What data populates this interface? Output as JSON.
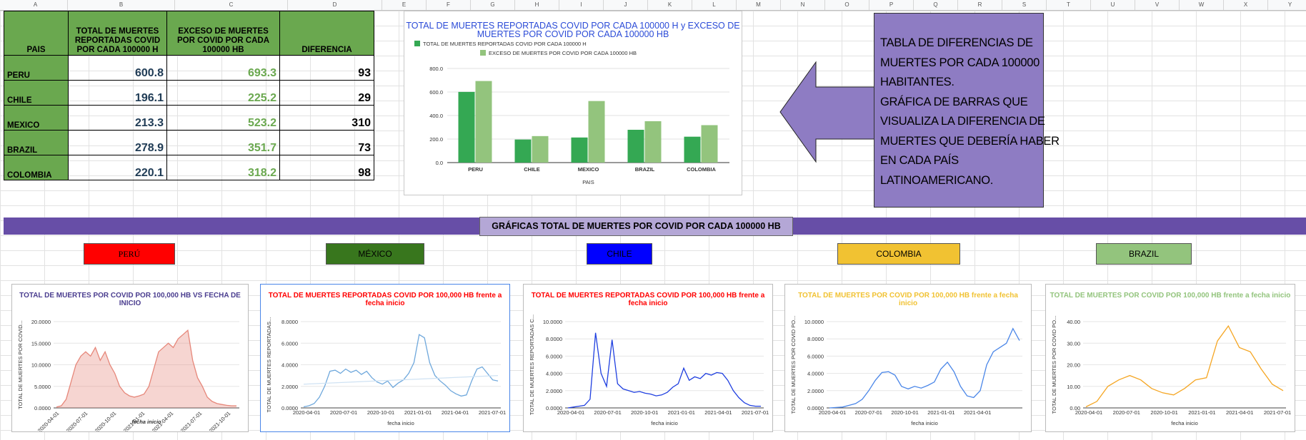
{
  "spreadsheet": {
    "columns": [
      "A",
      "B",
      "C",
      "D",
      "E",
      "F",
      "G",
      "H",
      "I",
      "J",
      "K",
      "L",
      "M",
      "N",
      "O",
      "P",
      "Q",
      "R",
      "S",
      "T",
      "U",
      "V",
      "W",
      "X",
      "Y"
    ]
  },
  "table": {
    "headers": {
      "pais": "PAIS",
      "total": "TOTAL DE MUERTES REPORTADAS COVID POR CADA 100000 H",
      "exceso": "EXCESO DE MUERTES POR COVID POR CADA 100000 HB",
      "diferencia": "DIFERENCIA"
    },
    "rows": [
      {
        "pais": "PERU",
        "total": "600.8",
        "exceso": "693.3",
        "diferencia": "93"
      },
      {
        "pais": "CHILE",
        "total": "196.1",
        "exceso": "225.2",
        "diferencia": "29"
      },
      {
        "pais": "MEXICO",
        "total": "213.3",
        "exceso": "523.2",
        "diferencia": "310"
      },
      {
        "pais": "BRAZIL",
        "total": "278.9",
        "exceso": "351.7",
        "diferencia": "73"
      },
      {
        "pais": "COLOMBIA",
        "total": "220.1",
        "exceso": "318.2",
        "diferencia": "98"
      }
    ]
  },
  "note": {
    "lines": [
      "TABLA DE DIFERENCIAS DE",
      "MUERTES POR CADA 100000",
      "HABITANTES.",
      "GRÁFICA DE BARRAS QUE",
      "VISUALIZA LA DIFERENCIA DE",
      "MUERTES QUE DEBERÍA HABER",
      "EN CADA PAÍS",
      "LATINOAMERICANO."
    ]
  },
  "band": {
    "title": "GRÁFICAS  TOTAL DE MUERTES POR COVID POR CADA 100000 HB"
  },
  "country_buttons": [
    {
      "label": "PERÚ",
      "bg": "#ff0000",
      "fg": "#000000"
    },
    {
      "label": "MÉXICO",
      "bg": "#38761d",
      "fg": "#000000"
    },
    {
      "label": "CHILE",
      "bg": "#0000ff",
      "fg": "#000000"
    },
    {
      "label": "COLOMBIA",
      "bg": "#f1c232",
      "fg": "#000000"
    },
    {
      "label": "BRAZIL",
      "bg": "#93c47d",
      "fg": "#000000"
    }
  ],
  "chart_data": [
    {
      "type": "bar",
      "title": "TOTAL DE MUERTES REPORTADAS COVID POR CADA 100000 H y EXCESO DE MUERTES POR COVID POR CADA 100000 HB",
      "categories": [
        "PERU",
        "CHILE",
        "MEXICO",
        "BRAZIL",
        "COLOMBIA"
      ],
      "series": [
        {
          "name": "TOTAL DE MUERTES REPORTADAS COVID POR CADA 100000 H",
          "values": [
            600.8,
            196.1,
            213.3,
            278.9,
            220.1
          ],
          "color": "#34a853"
        },
        {
          "name": "EXCESO DE MUERTES POR COVID POR CADA 100000 HB",
          "values": [
            693.3,
            225.2,
            523.2,
            351.7,
            318.2
          ],
          "color": "#93c47d"
        }
      ],
      "xlabel": "PAIS",
      "ylim": [
        0,
        800
      ],
      "yticks": [
        "0.0",
        "200.0",
        "400.0",
        "600.0",
        "800.0"
      ],
      "legend": "top-left"
    },
    {
      "type": "area",
      "title": "TOTAL DE MUERTES POR COVID POR 100,000 HB VS FECHA DE INICIO",
      "title_color": "#4a3d8f",
      "color": "#e6877a",
      "xlabel": "fecha inicio",
      "ylabel": "TOTAL DE MUERTES POR COVID...",
      "ylim": [
        0,
        20
      ],
      "yticks": [
        "0.0000",
        "5.0000",
        "10.0000",
        "15.0000",
        "20.0000"
      ],
      "xticks": [
        "2020-04-01",
        "2020-07-01",
        "2020-10-01",
        "2021-01-01",
        "2021-04-01",
        "2021-07-01",
        "2021-10-01"
      ],
      "values": [
        0.2,
        0.5,
        2,
        6,
        10,
        12,
        13,
        12,
        14,
        11,
        13,
        10,
        8,
        5,
        3.5,
        2.8,
        2.5,
        2.8,
        3.2,
        5,
        9,
        13,
        14,
        15,
        14,
        16,
        17,
        18,
        11,
        7,
        5,
        2.5,
        1.5,
        1,
        0.8,
        0.6,
        0.5,
        0.5
      ]
    },
    {
      "type": "line",
      "title": "TOTAL DE MUERTES REPORTADAS COVID POR 100,000 HB frente a fecha inicio",
      "title_color": "#ff0000",
      "color": "#6fa8dc",
      "xlabel": "fecha inicio",
      "ylabel": "TOTAL DE MUERTES REPORTADAS...",
      "ylim": [
        0,
        8
      ],
      "yticks": [
        "0.0000",
        "2.0000",
        "4.0000",
        "6.0000",
        "8.0000"
      ],
      "xticks": [
        "2020-04-01",
        "2020-07-01",
        "2020-10-01",
        "2021-01-01",
        "2021-04-01",
        "2021-07-01"
      ],
      "values": [
        0.1,
        0.2,
        0.4,
        1,
        2,
        3.4,
        3.5,
        3.2,
        3.6,
        3.3,
        3.5,
        3.1,
        3.4,
        2.8,
        2.4,
        2.2,
        2.5,
        1.9,
        2.3,
        2.6,
        3.2,
        4.2,
        6.8,
        6.5,
        4.2,
        3.0,
        2.5,
        2.1,
        1.6,
        1.3,
        1.1,
        1.2,
        2.5,
        3.6,
        3.8,
        3.2,
        2.6,
        2.5
      ]
    },
    {
      "type": "line",
      "title": "TOTAL DE MUERTES REPORTADAS COVID POR 100,000 HB frente a fecha inicio",
      "title_color": "#ff0000",
      "color": "#1f3fe0",
      "xlabel": "fecha inicio",
      "ylabel": "TOTAL DE MUERTES REPORTADAS C...",
      "ylim": [
        0,
        10
      ],
      "yticks": [
        "0.0000",
        "2.0000",
        "4.0000",
        "6.0000",
        "8.0000",
        "10.0000"
      ],
      "xticks": [
        "2020-04-01",
        "2020-07-01",
        "2020-10-01",
        "2021-01-01",
        "2021-04-01",
        "2021-07-01"
      ],
      "values": [
        0,
        0.1,
        0.2,
        0.3,
        1,
        8.7,
        4,
        2.5,
        7.9,
        2.8,
        2.2,
        2,
        1.8,
        1.9,
        1.7,
        1.6,
        1.4,
        1.5,
        1.8,
        2.4,
        2.8,
        4.6,
        3.2,
        3.6,
        3.4,
        4,
        3.8,
        4.1,
        4,
        3.2,
        2,
        1.2,
        0.6,
        0.3,
        0.2,
        0.2
      ]
    },
    {
      "type": "line",
      "title": "TOTAL DE MUERTES POR COVID POR 100,000 HB frente a fecha inicio",
      "title_color": "#f1c232",
      "color": "#4a86e8",
      "xlabel": "fecha inicio",
      "ylabel": "TOTAL DE MUERTES POR COVID PO...",
      "ylim": [
        0,
        10
      ],
      "yticks": [
        "0.0000",
        "2.0000",
        "4.0000",
        "6.0000",
        "8.0000",
        "10.0000"
      ],
      "xticks": [
        "2020-04-01",
        "2020-07-01",
        "2020-10-01",
        "2021-01-01",
        "2021-04-01"
      ],
      "values": [
        0,
        0.05,
        0.1,
        0.3,
        0.5,
        1,
        2,
        3.2,
        4.1,
        4.2,
        3.8,
        2.5,
        2.2,
        2.5,
        2.3,
        2.6,
        3,
        4.5,
        5.3,
        4.2,
        2.5,
        1.4,
        1.2,
        2,
        5,
        6.5,
        7,
        7.5,
        9.2,
        7.8
      ]
    },
    {
      "type": "line",
      "title": "TOTAL DE MUERTES POR COVID POR 100,000 HB frente a fecha inicio",
      "title_color": "#93c47d",
      "color": "#f5a623",
      "xlabel": "fecha inicio",
      "ylabel": "TOTAL DE MUERTES POR COVID PO...",
      "ylim": [
        0,
        40
      ],
      "yticks": [
        "0.00",
        "10.00",
        "20.00",
        "30.00",
        "40.00"
      ],
      "xticks": [
        "2020-04-01",
        "2020-07-01",
        "2020-10-01",
        "2021-01-01",
        "2021-04-01",
        "2021-07-01"
      ],
      "values": [
        0.5,
        3,
        10,
        13,
        15,
        13,
        9,
        7,
        6,
        9,
        13,
        14,
        31,
        38,
        28,
        26,
        18,
        11,
        8
      ]
    }
  ]
}
